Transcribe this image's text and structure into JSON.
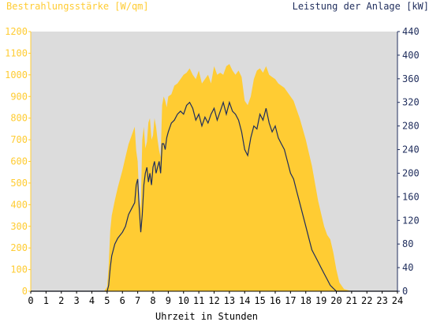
{
  "chart_data": {
    "type": "area",
    "title_left": "Bestrahlungsstärke [W/qm]",
    "title_right": "Leistung der Anlage [kW]",
    "xlabel": "Uhrzeit in Stunden",
    "x_ticks": [
      "0",
      "1",
      "2",
      "3",
      "4",
      "5",
      "6",
      "7",
      "8",
      "9",
      "10",
      "11",
      "12",
      "13",
      "14",
      "15",
      "16",
      "17",
      "18",
      "19",
      "20",
      "21",
      "22",
      "23",
      "24"
    ],
    "xlim": [
      0,
      24
    ],
    "y_left": {
      "label": "Bestrahlungsstärke [W/qm]",
      "ylim": [
        0,
        1200
      ],
      "ticks": [
        "0",
        "100",
        "200",
        "300",
        "400",
        "500",
        "600",
        "700",
        "800",
        "900",
        "1000",
        "1100",
        "1200"
      ]
    },
    "y_right": {
      "label": "Leistung der Anlage [kW]",
      "ylim": [
        0,
        440
      ],
      "ticks": [
        "0",
        "40",
        "80",
        "120",
        "160",
        "200",
        "240",
        "280",
        "320",
        "360",
        "400",
        "440"
      ]
    },
    "colors": {
      "irradiance": "#ffcc33",
      "power": "#1f2d5c",
      "plot_bg": "#dcdcdc",
      "left_axis": "#ffcc33",
      "right_axis": "#1f2d5c"
    },
    "series": [
      {
        "axis": "left",
        "style": "filled-area",
        "x": [
          0,
          4.8,
          5.0,
          5.1,
          5.2,
          5.3,
          5.5,
          5.7,
          6.0,
          6.2,
          6.4,
          6.6,
          6.8,
          6.9,
          7.0,
          7.1,
          7.2,
          7.3,
          7.4,
          7.5,
          7.6,
          7.7,
          7.8,
          7.9,
          8.0,
          8.1,
          8.2,
          8.3,
          8.4,
          8.5,
          8.6,
          8.7,
          8.8,
          8.9,
          9.0,
          9.2,
          9.4,
          9.6,
          9.8,
          10.0,
          10.2,
          10.4,
          10.6,
          10.8,
          11.0,
          11.2,
          11.4,
          11.6,
          11.8,
          12.0,
          12.2,
          12.4,
          12.6,
          12.8,
          13.0,
          13.2,
          13.4,
          13.6,
          13.8,
          14.0,
          14.2,
          14.4,
          14.6,
          14.8,
          15.0,
          15.2,
          15.4,
          15.6,
          15.8,
          16.0,
          16.2,
          16.4,
          16.6,
          16.8,
          17.0,
          17.2,
          17.4,
          17.6,
          17.8,
          18.0,
          18.2,
          18.4,
          18.6,
          18.8,
          19.0,
          19.2,
          19.4,
          19.6,
          19.8,
          20.0,
          20.2,
          20.5,
          21,
          24
        ],
        "y": [
          0,
          0,
          20,
          120,
          280,
          350,
          420,
          480,
          560,
          620,
          680,
          720,
          760,
          650,
          600,
          420,
          380,
          700,
          760,
          660,
          690,
          780,
          800,
          700,
          720,
          800,
          760,
          700,
          650,
          620,
          860,
          900,
          880,
          850,
          900,
          910,
          950,
          960,
          980,
          1000,
          1010,
          1030,
          1000,
          980,
          1020,
          960,
          980,
          1000,
          960,
          1040,
          1000,
          1010,
          1000,
          1040,
          1050,
          1020,
          1000,
          1020,
          990,
          880,
          860,
          900,
          980,
          1020,
          1030,
          1010,
          1040,
          1000,
          990,
          980,
          960,
          950,
          940,
          920,
          900,
          880,
          840,
          800,
          750,
          700,
          640,
          580,
          500,
          420,
          360,
          300,
          260,
          240,
          180,
          100,
          40,
          10,
          0,
          0
        ]
      },
      {
        "axis": "right",
        "style": "line",
        "x": [
          0,
          4.8,
          5.0,
          5.1,
          5.2,
          5.3,
          5.5,
          5.7,
          6.0,
          6.2,
          6.4,
          6.6,
          6.8,
          6.9,
          7.0,
          7.1,
          7.2,
          7.3,
          7.4,
          7.5,
          7.6,
          7.7,
          7.8,
          7.9,
          8.0,
          8.1,
          8.2,
          8.3,
          8.4,
          8.5,
          8.6,
          8.7,
          8.8,
          8.9,
          9.0,
          9.2,
          9.4,
          9.6,
          9.8,
          10.0,
          10.2,
          10.4,
          10.6,
          10.8,
          11.0,
          11.2,
          11.4,
          11.6,
          11.8,
          12.0,
          12.2,
          12.4,
          12.6,
          12.8,
          13.0,
          13.2,
          13.4,
          13.6,
          13.8,
          14.0,
          14.2,
          14.4,
          14.6,
          14.8,
          15.0,
          15.2,
          15.4,
          15.6,
          15.8,
          16.0,
          16.2,
          16.4,
          16.6,
          16.8,
          17.0,
          17.2,
          17.4,
          17.6,
          17.8,
          18.0,
          18.2,
          18.4,
          18.6,
          18.8,
          19.0,
          19.2,
          19.4,
          19.6,
          19.8,
          20.0,
          20.2,
          20.5,
          21,
          24
        ],
        "y": [
          0,
          0,
          0,
          10,
          40,
          60,
          80,
          90,
          100,
          110,
          130,
          140,
          150,
          180,
          190,
          140,
          100,
          130,
          180,
          200,
          210,
          185,
          200,
          180,
          210,
          220,
          200,
          210,
          220,
          200,
          250,
          250,
          240,
          260,
          270,
          285,
          290,
          300,
          305,
          300,
          315,
          320,
          310,
          290,
          300,
          280,
          295,
          285,
          300,
          310,
          290,
          305,
          320,
          300,
          320,
          305,
          300,
          290,
          270,
          240,
          230,
          260,
          280,
          275,
          300,
          290,
          310,
          285,
          270,
          280,
          260,
          250,
          240,
          220,
          200,
          190,
          170,
          150,
          130,
          110,
          90,
          70,
          60,
          50,
          40,
          30,
          20,
          10,
          5,
          0,
          0,
          0,
          0,
          0
        ]
      }
    ]
  }
}
